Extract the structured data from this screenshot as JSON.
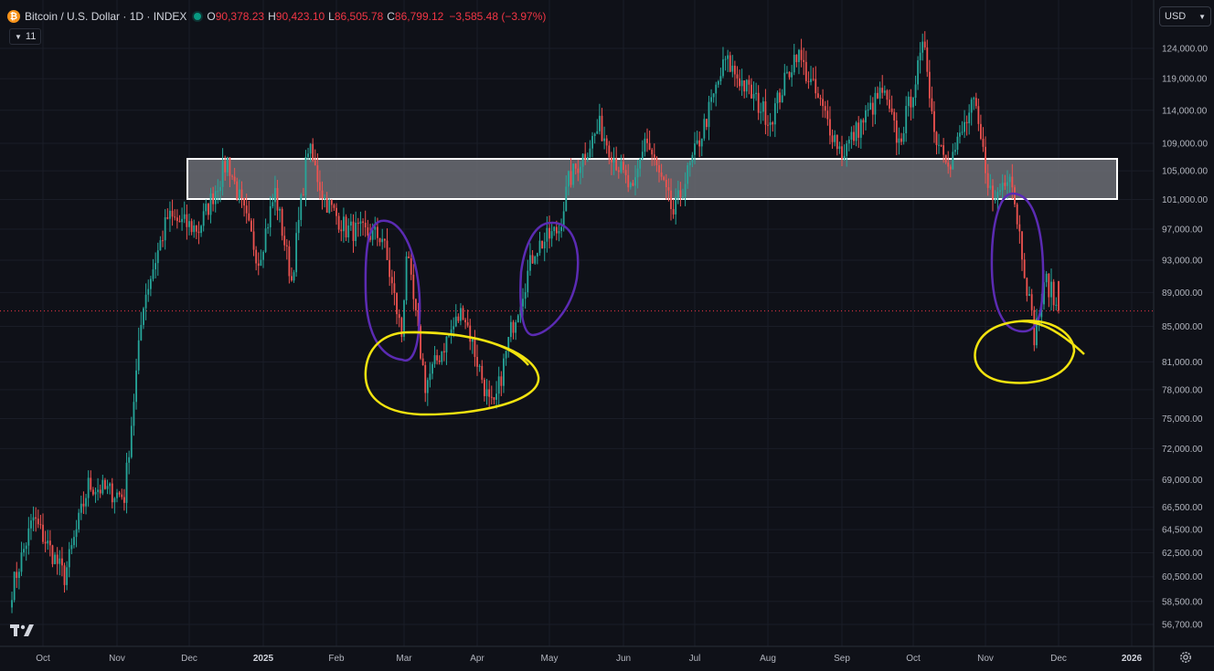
{
  "header": {
    "symbol": "Bitcoin / U.S. Dollar · 1D · INDEX",
    "o_label": "O",
    "o_value": "90,378.23",
    "h_label": "H",
    "h_value": "90,423.10",
    "l_label": "L",
    "l_value": "86,505.78",
    "c_label": "C",
    "c_value": "86,799.12",
    "change": "−3,585.48 (−3.97%)",
    "indicator_count": "11",
    "currency": "USD"
  },
  "colors": {
    "up": "#26a69a",
    "down": "#ef5350",
    "background": "#0f1118",
    "zone_fill": "#6b6d74",
    "zone_border": "#ffffff",
    "annotation_purple": "#5b2bb3",
    "annotation_yellow": "#f2e30f"
  },
  "icons": {
    "logo": "tradingview-logo-icon",
    "settings": "gear-icon",
    "symbol_badge": "bitcoin-icon"
  },
  "chart_data": {
    "type": "candlestick",
    "scale": "log",
    "y_ticks": [
      "124,000.00",
      "119,000.00",
      "114,000.00",
      "109,000.00",
      "105,000.00",
      "101,000.00",
      "97,000.00",
      "93,000.00",
      "89,000.00",
      "85,000.00",
      "81,000.00",
      "78,000.00",
      "75,000.00",
      "72,000.00",
      "69,000.00",
      "66,500.00",
      "64,500.00",
      "62,500.00",
      "60,500.00",
      "58,500.00",
      "56,700.00"
    ],
    "x_ticks": [
      "Oct",
      "Nov",
      "Dec",
      "2025",
      "Feb",
      "Mar",
      "Apr",
      "May",
      "Jun",
      "Jul",
      "Aug",
      "Sep",
      "Oct",
      "Nov",
      "Dec",
      "2026"
    ],
    "last_close": 86799.12,
    "resistance_zone": {
      "low": 101000,
      "high": 106500
    },
    "price_path": [
      [
        "2024-09-18",
        59500
      ],
      [
        "2024-09-27",
        65500
      ],
      [
        "2024-10-10",
        60500
      ],
      [
        "2024-10-20",
        68500
      ],
      [
        "2024-11-04",
        67500
      ],
      [
        "2024-11-12",
        88000
      ],
      [
        "2024-11-22",
        98500
      ],
      [
        "2024-12-05",
        97000
      ],
      [
        "2024-12-17",
        106500
      ],
      [
        "2024-12-30",
        93000
      ],
      [
        "2025-01-06",
        102000
      ],
      [
        "2025-01-13",
        90500
      ],
      [
        "2025-01-20",
        108500
      ],
      [
        "2025-01-27",
        101000
      ],
      [
        "2025-02-05",
        97000
      ],
      [
        "2025-02-20",
        96000
      ],
      [
        "2025-02-28",
        84000
      ],
      [
        "2025-03-02",
        94000
      ],
      [
        "2025-03-10",
        78500
      ],
      [
        "2025-03-20",
        84000
      ],
      [
        "2025-03-26",
        87000
      ],
      [
        "2025-04-06",
        76500
      ],
      [
        "2025-04-08",
        76000
      ],
      [
        "2025-04-15",
        84500
      ],
      [
        "2025-04-25",
        94500
      ],
      [
        "2025-05-05",
        97000
      ],
      [
        "2025-05-09",
        103500
      ],
      [
        "2025-05-22",
        111500
      ],
      [
        "2025-06-05",
        101500
      ],
      [
        "2025-06-10",
        110000
      ],
      [
        "2025-06-22",
        99000
      ],
      [
        "2025-07-03",
        109500
      ],
      [
        "2025-07-14",
        122000
      ],
      [
        "2025-08-02",
        112500
      ],
      [
        "2025-08-13",
        123500
      ],
      [
        "2025-09-01",
        107500
      ],
      [
        "2025-09-18",
        117000
      ],
      [
        "2025-09-25",
        109000
      ],
      [
        "2025-10-06",
        125000
      ],
      [
        "2025-10-10",
        110500
      ],
      [
        "2025-10-17",
        106500
      ],
      [
        "2025-10-27",
        115000
      ],
      [
        "2025-11-04",
        100500
      ],
      [
        "2025-11-11",
        105500
      ],
      [
        "2025-11-21",
        84000
      ],
      [
        "2025-11-26",
        90500
      ],
      [
        "2025-12-01",
        86800
      ]
    ]
  }
}
